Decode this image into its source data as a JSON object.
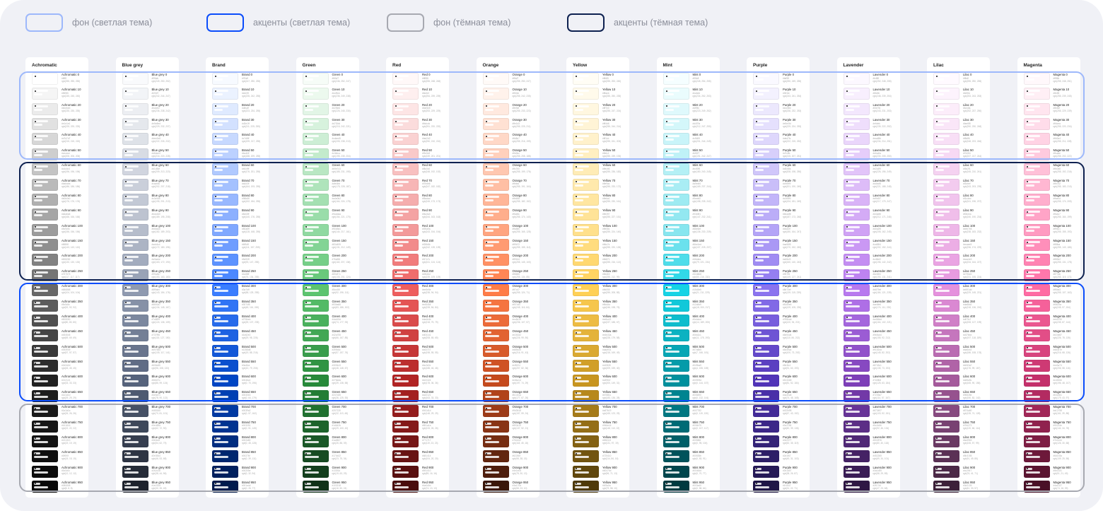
{
  "legend": [
    {
      "label": "фон (светлая тема)",
      "color": "#9db8fb"
    },
    {
      "label": "акценты (светлая тема)",
      "color": "#0b4dfb"
    },
    {
      "label": "фон (тёмная тема)",
      "color": "#a7a9b1"
    },
    {
      "label": "акценты (тёмная тема)",
      "color": "#0e2150"
    }
  ],
  "shades": [
    0,
    10,
    20,
    30,
    40,
    50,
    60,
    70,
    80,
    90,
    100,
    150,
    200,
    250,
    300,
    350,
    400,
    450,
    500,
    550,
    600,
    650,
    700,
    750,
    800,
    850,
    900,
    950
  ],
  "palettes": [
    {
      "name": "Achromatic",
      "anchors": [
        "#ffffff",
        "#9c9c9c",
        "#686868",
        "#212121",
        "#080808"
      ]
    },
    {
      "name": "Blue grey",
      "anchors": [
        "#f9fafc",
        "#b6bdcb",
        "#8f9ab0",
        "#56637c",
        "#1e232d"
      ]
    },
    {
      "name": "Brand",
      "anchors": [
        "#f7faff",
        "#80a8ff",
        "#3a7dff",
        "#0046c4",
        "#001a4d"
      ]
    },
    {
      "name": "Green",
      "anchors": [
        "#f6fcf7",
        "#90d9a1",
        "#5cc46f",
        "#278a3a",
        "#103218"
      ]
    },
    {
      "name": "Red",
      "anchors": [
        "#fff8f8",
        "#f39a9a",
        "#ee5e5e",
        "#b22424",
        "#4a0d0d"
      ]
    },
    {
      "name": "Orange",
      "anchors": [
        "#fffaf7",
        "#ffa580",
        "#ff7c47",
        "#c54a1d",
        "#3a170a"
      ]
    },
    {
      "name": "Yellow",
      "anchors": [
        "#fffdf5",
        "#ffe08c",
        "#ffd055",
        "#c8951f",
        "#4f3a0a"
      ]
    },
    {
      "name": "Mint",
      "anchors": [
        "#f5feff",
        "#88e6ef",
        "#15d3e5",
        "#00909d",
        "#003a40"
      ]
    },
    {
      "name": "Purple",
      "anchors": [
        "#faf9ff",
        "#b4a4f7",
        "#8b73ef",
        "#5134b8",
        "#1f1647"
      ]
    },
    {
      "name": "Lavender",
      "anchors": [
        "#fcf8ff",
        "#d0a2f5",
        "#b879ef",
        "#7d3fb8",
        "#2f1744"
      ]
    },
    {
      "name": "Lilac",
      "anchors": [
        "#fffaff",
        "#eeb7e8",
        "#e591dd",
        "#a55a9c",
        "#3d2139"
      ]
    },
    {
      "name": "Magenta",
      "anchors": [
        "#fff8fb",
        "#ff9bc1",
        "#ff6ba3",
        "#c4306b",
        "#4a1027"
      ]
    }
  ],
  "groups": [
    {
      "label": "фон (светлая тема)",
      "color": "#9db8fb",
      "from": 0,
      "to": 50
    },
    {
      "label": "акценты (тёмная тема)",
      "color": "#0e2150",
      "from": 60,
      "to": 250
    },
    {
      "label": "акценты (светлая тема)",
      "color": "#0b4dfb",
      "from": 300,
      "to": 650
    },
    {
      "label": "фон (тёмная тема)",
      "color": "#a7a9b1",
      "from": 700,
      "to": 950
    }
  ]
}
